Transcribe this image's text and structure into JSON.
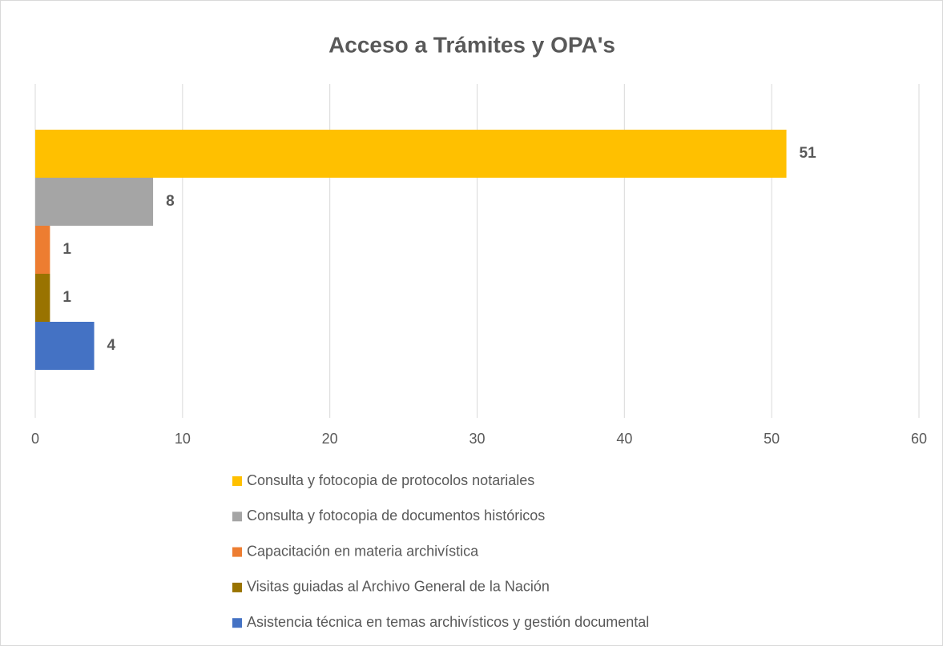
{
  "chart_data": {
    "type": "bar",
    "orientation": "horizontal",
    "title": "Acceso a Trámites y OPA's",
    "series": [
      {
        "name": "Consulta y fotocopia de protocolos notariales",
        "color": "#ffc000",
        "values": [
          51
        ]
      },
      {
        "name": "Consulta y fotocopia de documentos históricos",
        "color": "#a5a5a5",
        "values": [
          8
        ]
      },
      {
        "name": "Capacitación en materia archivística",
        "color": "#ed7d31",
        "values": [
          1
        ]
      },
      {
        "name": "Visitas guiadas al Archivo General de la Nación",
        "color": "#997300",
        "values": [
          1
        ]
      },
      {
        "name": "Asistencia técnica en temas archivísticos y gestión documental",
        "color": "#4472c4",
        "values": [
          4
        ]
      }
    ],
    "xlim": [
      0,
      60
    ],
    "xticks": [
      0,
      10,
      20,
      30,
      40,
      50,
      60
    ],
    "grid": true,
    "legend": "bottom"
  }
}
